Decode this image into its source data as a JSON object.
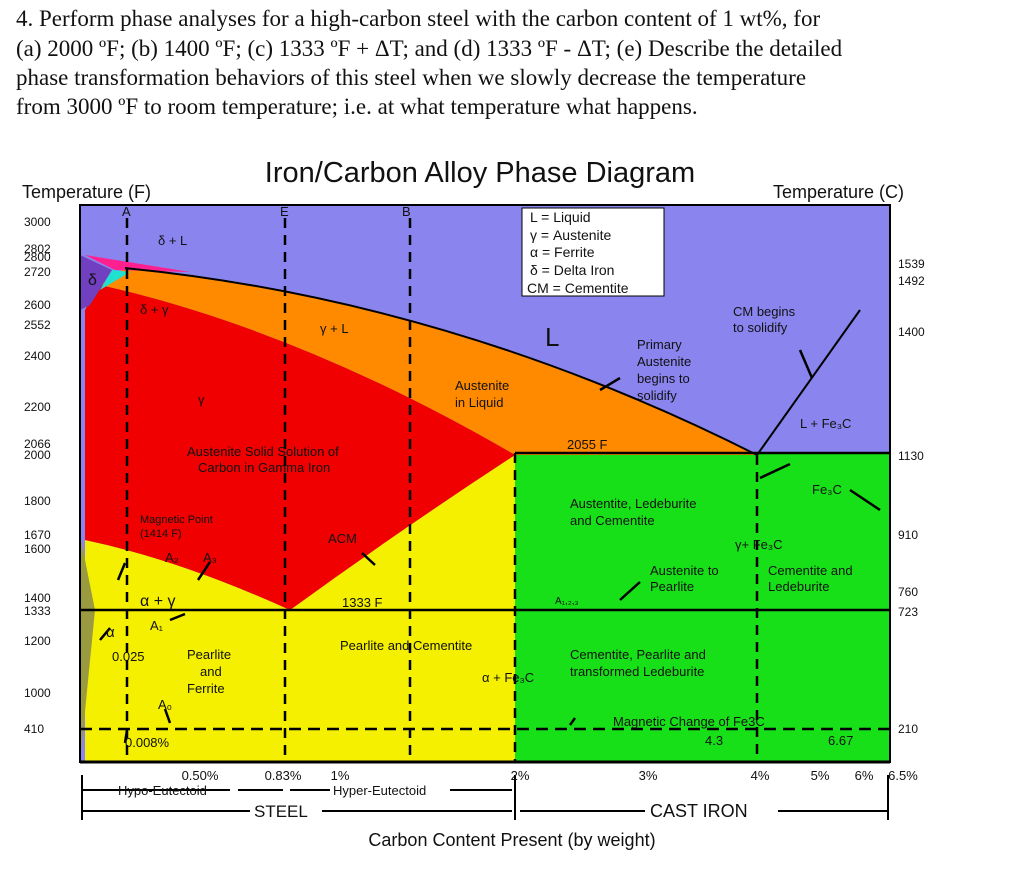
{
  "question": {
    "lines": [
      "4. Perform phase analyses for a high-carbon steel with the carbon content of 1 wt%, for",
      "(a) 2000 ºF; (b) 1400 ºF; (c) 1333 ºF + ΔT; and (d) 1333 ºF - ΔT; (e) Describe the detailed",
      "phase transformation behaviors of this steel when we slowly decrease the temperature",
      "from 3000 ºF to room temperature; i.e. at what temperature what happens."
    ]
  },
  "diagram": {
    "title": "Iron/Carbon Alloy Phase Diagram",
    "left_axis_title": "Temperature (F)",
    "right_axis_title": "Temperature (C)",
    "left_ticks": [
      "3000",
      "2802",
      "2800",
      "2720",
      "2600",
      "2552",
      "2400",
      "2200",
      "2066",
      "2000",
      "1800",
      "1670",
      "1600",
      "1400",
      "1333",
      "1200",
      "1000",
      "410"
    ],
    "right_ticks": [
      "1539",
      "1492",
      "1400",
      "1130",
      "910",
      "760",
      "723",
      "210"
    ],
    "bottom_ticks": [
      "0.50%",
      "0.83%",
      "1%",
      "2%",
      "3%",
      "4%",
      "5%",
      "6%",
      "6.5%"
    ],
    "x_axis_title": "Carbon Content Present (by weight)",
    "ranges": [
      "Hypo-Eutectoid",
      "Hyper-Eutectoid",
      "STEEL",
      "CAST IRON"
    ],
    "legend": [
      "L  =  Liquid",
      "γ  =  Austenite",
      "α  =  Ferrite",
      "δ  =  Delta Iron",
      "CM  =  Cementite"
    ],
    "labels": [
      "A",
      "E",
      "B",
      "δ + L",
      "δ + γ",
      "γ + L",
      "γ",
      "L",
      "Austenite",
      "in Liquid",
      "Primary",
      "Austenite",
      "begins to",
      "solidify",
      "CM begins",
      "to solidify",
      "L + Fe₃C",
      "2055 F",
      "Austenite Solid Solution of",
      "Carbon in Gamma Iron",
      "Fe₃C",
      "Austentite, Ledeburite",
      "and Cementite",
      "Magnetic Point",
      "(1414 F)",
      "ACM",
      "γ+ Fe₃C",
      "A₂",
      "A₃",
      "Austenite to",
      "Pearlite",
      "Cementite and",
      "Ledeburite",
      "α + γ",
      "A₁,₂,₃",
      "1333 F",
      "A₁",
      "α",
      "Pearlite and Cementite",
      "0.025",
      "Pearlite",
      "and",
      "Ferrite",
      "Cementite, Pearlite and",
      "transformed Ledeburite",
      "α + Fe₃C",
      "A₀",
      "Magnetic Change of Fe3C",
      "4.3",
      "6.67",
      "0.008%",
      "δ"
    ]
  }
}
